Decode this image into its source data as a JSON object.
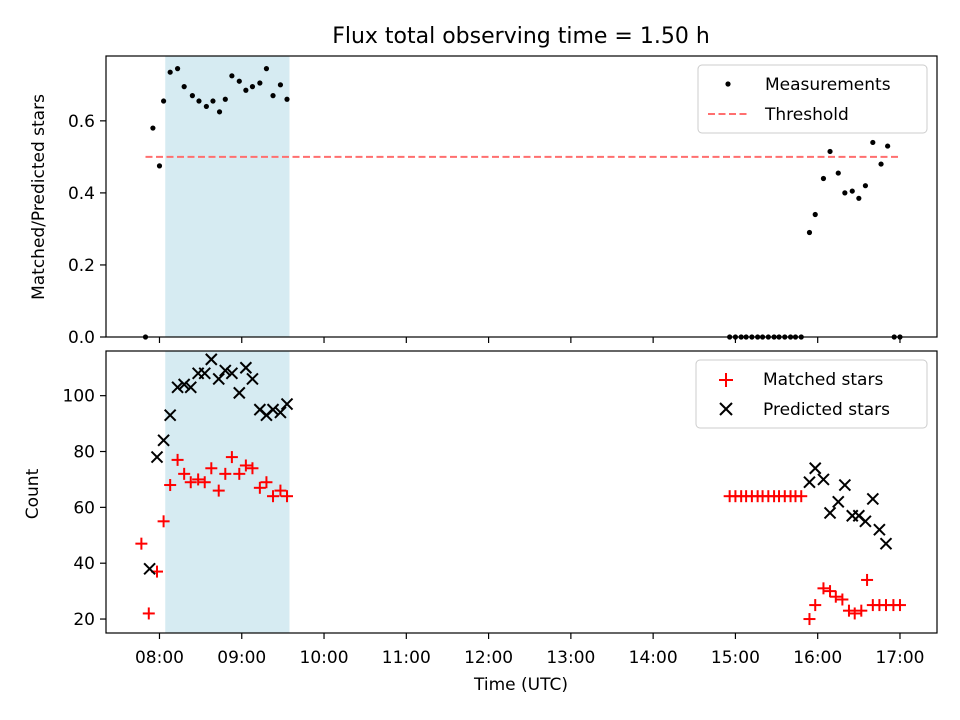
{
  "chart_data": [
    {
      "type": "scatter",
      "title": "Flux total observing time = 1.50 h",
      "ylabel": "Matched/Predicted stars",
      "xlabel": "",
      "ylim": [
        0,
        0.78
      ],
      "yticks": [
        "0.0",
        "0.2",
        "0.4",
        "0.6"
      ],
      "ytick_values": [
        0,
        0.2,
        0.4,
        0.6
      ],
      "xlim_hours": [
        7.35,
        17.45
      ],
      "grid": false,
      "legend": "top-right",
      "shaded_span_hours": [
        8.07,
        9.58
      ],
      "shade_color": "#add8e6",
      "threshold": {
        "name": "Threshold",
        "value": 0.5,
        "x_from": 7.83,
        "x_to": 17.0,
        "color": "#ff6f6f"
      },
      "series": [
        {
          "name": "Measurements",
          "marker": "dot",
          "color": "#000000",
          "x": [
            7.83,
            7.92,
            8.0,
            8.05,
            8.13,
            8.22,
            8.3,
            8.4,
            8.48,
            8.57,
            8.65,
            8.73,
            8.8,
            8.88,
            8.97,
            9.05,
            9.13,
            9.22,
            9.3,
            9.38,
            9.47,
            9.55,
            14.93,
            15.0,
            15.07,
            15.13,
            15.2,
            15.27,
            15.33,
            15.4,
            15.47,
            15.53,
            15.6,
            15.67,
            15.73,
            15.8,
            15.9,
            15.97,
            16.07,
            16.15,
            16.25,
            16.33,
            16.42,
            16.5,
            16.58,
            16.67,
            16.77,
            16.85,
            16.93,
            17.0
          ],
          "y": [
            0.0,
            0.58,
            0.475,
            0.655,
            0.735,
            0.745,
            0.695,
            0.67,
            0.655,
            0.64,
            0.655,
            0.625,
            0.66,
            0.725,
            0.71,
            0.685,
            0.695,
            0.705,
            0.745,
            0.67,
            0.7,
            0.66,
            0.0,
            0.0,
            0.0,
            0.0,
            0.0,
            0.0,
            0.0,
            0.0,
            0.0,
            0.0,
            0.0,
            0.0,
            0.0,
            0.0,
            0.29,
            0.34,
            0.44,
            0.515,
            0.455,
            0.4,
            0.405,
            0.385,
            0.42,
            0.54,
            0.48,
            0.53,
            0.0,
            0.0
          ]
        }
      ]
    },
    {
      "type": "scatter",
      "title": "",
      "ylabel": "Count",
      "xlabel": "Time (UTC)",
      "ylim": [
        15,
        116
      ],
      "yticks": [
        "20",
        "40",
        "60",
        "80",
        "100"
      ],
      "ytick_values": [
        20,
        40,
        60,
        80,
        100
      ],
      "xlim_hours": [
        7.35,
        17.45
      ],
      "xticks": [
        "08:00",
        "09:00",
        "10:00",
        "11:00",
        "12:00",
        "13:00",
        "14:00",
        "15:00",
        "16:00",
        "17:00"
      ],
      "xtick_hours": [
        8,
        9,
        10,
        11,
        12,
        13,
        14,
        15,
        16,
        17
      ],
      "grid": false,
      "legend": "top-right",
      "shaded_span_hours": [
        8.07,
        9.58
      ],
      "series": [
        {
          "name": "Matched stars",
          "marker": "plus",
          "color": "#ff0000",
          "x": [
            7.78,
            7.87,
            7.97,
            8.05,
            8.13,
            8.22,
            8.3,
            8.38,
            8.47,
            8.55,
            8.63,
            8.72,
            8.8,
            8.88,
            8.97,
            9.05,
            9.13,
            9.22,
            9.3,
            9.38,
            9.47,
            9.55,
            14.93,
            15.0,
            15.07,
            15.13,
            15.2,
            15.27,
            15.33,
            15.4,
            15.47,
            15.53,
            15.6,
            15.67,
            15.73,
            15.8,
            15.9,
            15.97,
            16.07,
            16.15,
            16.22,
            16.3,
            16.38,
            16.45,
            16.53,
            16.6,
            16.67,
            16.75,
            16.83,
            16.92,
            17.0
          ],
          "y": [
            47,
            22,
            37,
            55,
            68,
            77,
            72,
            69,
            70,
            69,
            74,
            66,
            72,
            78,
            72,
            75,
            74,
            67,
            69,
            64,
            66,
            64,
            64,
            64,
            64,
            64,
            64,
            64,
            64,
            64,
            64,
            64,
            64,
            64,
            64,
            64,
            20,
            25,
            31,
            30,
            28,
            27,
            23,
            22,
            23,
            34,
            25,
            25,
            25,
            25,
            25
          ]
        },
        {
          "name": "Predicted stars",
          "marker": "x",
          "color": "#000000",
          "x": [
            7.88,
            7.97,
            8.05,
            8.13,
            8.22,
            8.3,
            8.38,
            8.47,
            8.55,
            8.63,
            8.72,
            8.8,
            8.88,
            8.97,
            9.05,
            9.13,
            9.22,
            9.3,
            9.38,
            9.47,
            9.55,
            15.9,
            15.97,
            16.07,
            16.15,
            16.25,
            16.33,
            16.42,
            16.5,
            16.58,
            16.67,
            16.75,
            16.83
          ],
          "y": [
            38,
            78,
            84,
            93,
            103,
            104,
            103,
            108,
            108,
            113,
            106,
            109,
            108,
            101,
            110,
            106,
            95,
            93,
            95,
            94,
            97,
            69,
            74,
            70,
            58,
            62,
            68,
            57,
            57,
            55,
            63,
            52,
            47
          ]
        }
      ]
    }
  ]
}
